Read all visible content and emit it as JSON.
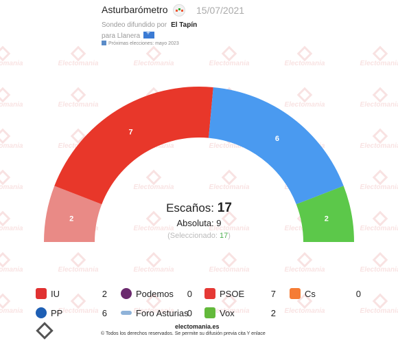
{
  "header": {
    "title": "Asturbarómetro",
    "date": "15/07/2021",
    "subtitle_prefix": "Sondeo difundido por",
    "pollster": "El Tapín",
    "region": "para Llanera",
    "next_elections": "Próximas elecciones: mayo 2023"
  },
  "watermark": {
    "text": "Electomania"
  },
  "chart_data": {
    "type": "hemicycle",
    "total_seats": 17,
    "segments": [
      {
        "party": "IU",
        "seats": 2,
        "color": "#e98a86"
      },
      {
        "party": "PSOE",
        "seats": 7,
        "color": "#e8372a"
      },
      {
        "party": "PP",
        "seats": 6,
        "color": "#4a9af0"
      },
      {
        "party": "Vox",
        "seats": 2,
        "color": "#5cc84a"
      }
    ]
  },
  "summary": {
    "escanos_label": "Escaños:",
    "escanos_value": "17",
    "absoluta": "Absoluta: 9",
    "seleccionado_prefix": "(Seleccionado: ",
    "seleccionado_value": "17",
    "seleccionado_suffix": ")"
  },
  "legend": [
    {
      "name": "IU",
      "value": "2",
      "color": "#e03131",
      "icon": "iu-icon"
    },
    {
      "name": "Podemos",
      "value": "0",
      "color": "#6b2a6e",
      "icon": "podemos-icon"
    },
    {
      "name": "PSOE",
      "value": "7",
      "color": "#e53935",
      "icon": "psoe-icon"
    },
    {
      "name": "Cs",
      "value": "0",
      "color": "#f57c35",
      "icon": "cs-icon"
    },
    {
      "name": "PP",
      "value": "6",
      "color": "#1e5fb4",
      "icon": "pp-icon"
    },
    {
      "name": "Foro Asturias",
      "value": "0",
      "color": "#8fb3d9",
      "icon": "foro-asturias-icon"
    },
    {
      "name": "Vox",
      "value": "2",
      "color": "#63b93b",
      "icon": "vox-icon"
    }
  ],
  "footer": {
    "site": "electomania.es",
    "copyright": "© Todos los derechos reservados. Se permite su difusión previa cita Y enlace"
  }
}
